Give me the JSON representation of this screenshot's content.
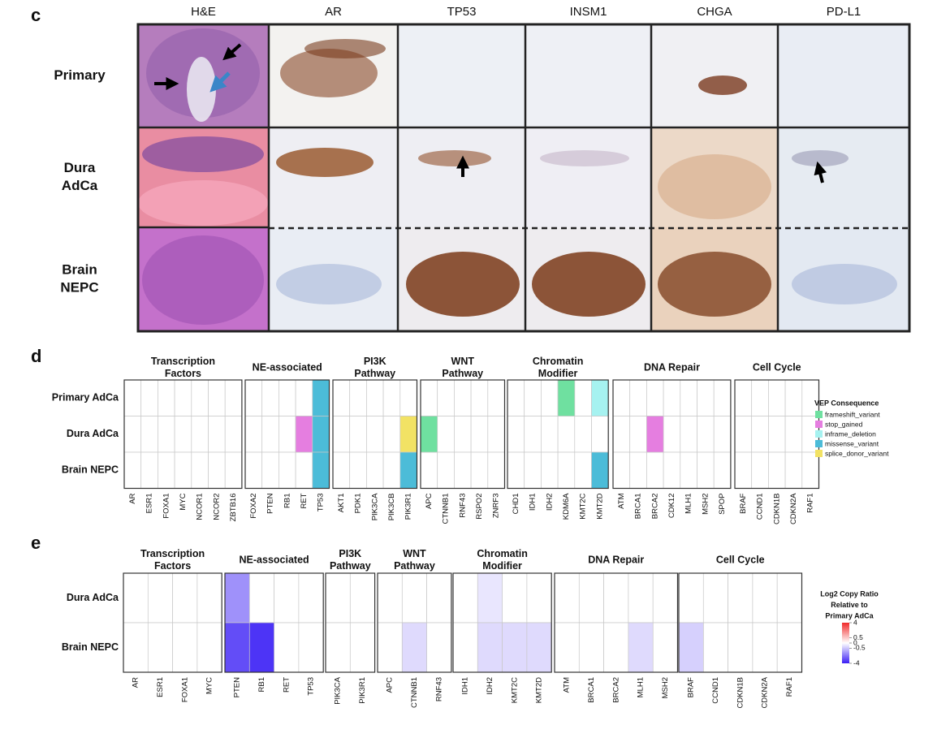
{
  "panel_c": {
    "label": "c",
    "columns": [
      "H&E",
      "AR",
      "TP53",
      "INSM1",
      "CHGA",
      "PD-L1"
    ],
    "rows": [
      [
        "Primary"
      ],
      [
        "Dura",
        "AdCa"
      ],
      [
        "Brain",
        "NEPC"
      ]
    ]
  },
  "panel_d": {
    "label": "d",
    "rows": [
      "Primary AdCa",
      "Dura AdCa",
      "Brain NEPC"
    ],
    "groups": [
      {
        "title": [
          "Transcription",
          "Factors"
        ],
        "genes": [
          "AR",
          "ESR1",
          "FOXA1",
          "MYC",
          "NCOR1",
          "NCOR2",
          "ZBTB16"
        ]
      },
      {
        "title": [
          "NE-associated"
        ],
        "genes": [
          "FOXA2",
          "PTEN",
          "RB1",
          "RET",
          "TP53"
        ]
      },
      {
        "title": [
          "PI3K",
          "Pathway"
        ],
        "genes": [
          "AKT1",
          "PDK1",
          "PIK3CA",
          "PIK3CB",
          "PIK3R1"
        ]
      },
      {
        "title": [
          "WNT",
          "Pathway"
        ],
        "genes": [
          "APC",
          "CTNNB1",
          "RNF43",
          "RSPO2",
          "ZNRF3"
        ]
      },
      {
        "title": [
          "Chromatin",
          "Modifier"
        ],
        "genes": [
          "CHD1",
          "IDH1",
          "IDH2",
          "KDM6A",
          "KMT2C",
          "KMT2D"
        ]
      },
      {
        "title": [
          "DNA Repair"
        ],
        "genes": [
          "ATM",
          "BRCA1",
          "BRCA2",
          "CDK12",
          "MLH1",
          "MSH2",
          "SPOP"
        ]
      },
      {
        "title": [
          "Cell Cycle"
        ],
        "genes": [
          "BRAF",
          "CCND1",
          "CDKN1B",
          "CDKN2A",
          "RAF1"
        ]
      }
    ],
    "legend_title": "VEP Consequence",
    "consequences": [
      {
        "name": "frameshift_variant",
        "color": "#6fe0a0"
      },
      {
        "name": "stop_gained",
        "color": "#e57ee0"
      },
      {
        "name": "inframe_deletion",
        "color": "#a6f2f0"
      },
      {
        "name": "missense_variant",
        "color": "#4cbcd8"
      },
      {
        "name": "splice_donor_variant",
        "color": "#f2e264"
      }
    ],
    "cells": [
      {
        "row": 0,
        "gene": "TP53",
        "consequence": "missense_variant"
      },
      {
        "row": 0,
        "gene": "KDM6A",
        "consequence": "frameshift_variant"
      },
      {
        "row": 0,
        "gene": "KMT2D",
        "consequence": "inframe_deletion"
      },
      {
        "row": 1,
        "gene": "RET",
        "consequence": "stop_gained"
      },
      {
        "row": 1,
        "gene": "TP53",
        "consequence": "missense_variant"
      },
      {
        "row": 1,
        "gene": "PIK3R1",
        "consequence": "splice_donor_variant"
      },
      {
        "row": 1,
        "gene": "APC",
        "consequence": "frameshift_variant"
      },
      {
        "row": 1,
        "gene": "BRCA2",
        "consequence": "stop_gained"
      },
      {
        "row": 2,
        "gene": "TP53",
        "consequence": "missense_variant"
      },
      {
        "row": 2,
        "gene": "PIK3R1",
        "consequence": "missense_variant"
      },
      {
        "row": 2,
        "gene": "KMT2D",
        "consequence": "missense_variant"
      }
    ]
  },
  "panel_e": {
    "label": "e",
    "rows": [
      "Dura AdCa",
      "Brain NEPC"
    ],
    "groups": [
      {
        "title": [
          "Transcription",
          "Factors"
        ],
        "genes": [
          "AR",
          "ESR1",
          "FOXA1",
          "MYC"
        ]
      },
      {
        "title": [
          "NE-associated"
        ],
        "genes": [
          "PTEN",
          "RB1",
          "RET",
          "TP53"
        ]
      },
      {
        "title": [
          "PI3K",
          "Pathway"
        ],
        "genes": [
          "PIK3CA",
          "PIK3R1"
        ]
      },
      {
        "title": [
          "WNT",
          "Pathway"
        ],
        "genes": [
          "APC",
          "CTNNB1",
          "RNF43"
        ]
      },
      {
        "title": [
          "Chromatin",
          "Modifier"
        ],
        "genes": [
          "IDH1",
          "IDH2",
          "KMT2C",
          "KMT2D"
        ]
      },
      {
        "title": [
          "DNA Repair"
        ],
        "genes": [
          "ATM",
          "BRCA1",
          "BRCA2",
          "MLH1",
          "MSH2"
        ]
      },
      {
        "title": [
          "Cell Cycle"
        ],
        "genes": [
          "BRAF",
          "CCND1",
          "CDKN1B",
          "CDKN2A",
          "RAF1"
        ]
      }
    ],
    "legend_title": [
      "Log2 Copy Ratio",
      "Relative to",
      "Primary AdCa"
    ],
    "lim": [
      -4,
      4
    ],
    "ticks": [
      4,
      0.5,
      0,
      -0.5,
      -4
    ],
    "low_color": "#3b1ff5",
    "high_color": "#f02a2a",
    "cells": [
      {
        "row": 0,
        "gene": "PTEN",
        "value": -1.2
      },
      {
        "row": 0,
        "gene": "IDH2",
        "value": -0.2
      },
      {
        "row": 1,
        "gene": "PTEN",
        "value": -2.6
      },
      {
        "row": 1,
        "gene": "RB1",
        "value": -3.3
      },
      {
        "row": 1,
        "gene": "CTNNB1",
        "value": -0.3
      },
      {
        "row": 1,
        "gene": "IDH2",
        "value": -0.3
      },
      {
        "row": 1,
        "gene": "KMT2C",
        "value": -0.3
      },
      {
        "row": 1,
        "gene": "KMT2D",
        "value": -0.3
      },
      {
        "row": 1,
        "gene": "MLH1",
        "value": -0.3
      },
      {
        "row": 1,
        "gene": "BRAF",
        "value": -0.4
      }
    ]
  }
}
